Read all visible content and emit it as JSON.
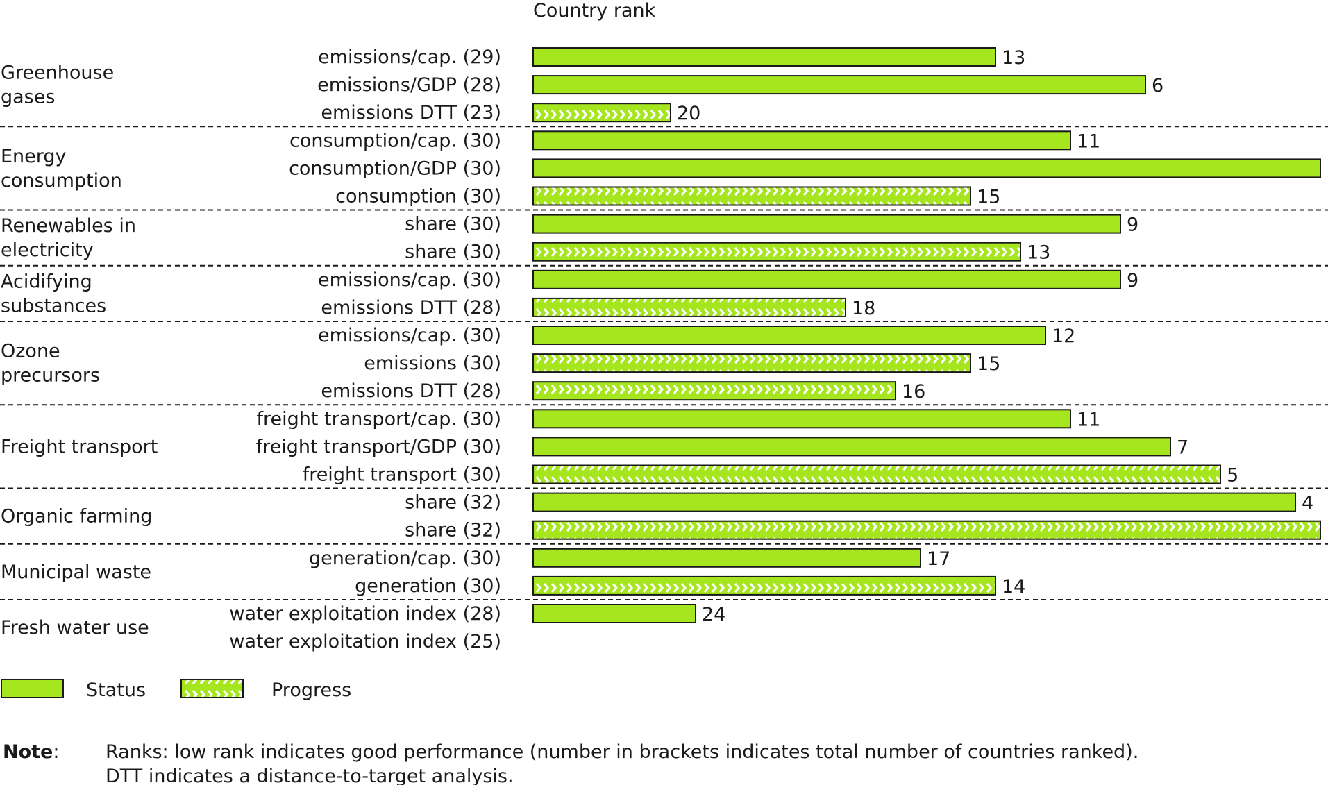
{
  "chart_data": {
    "type": "bar",
    "orientation": "horizontal",
    "title": "Country rank",
    "colors": {
      "status": "#a6e61e",
      "progress": "#a6e61e",
      "progress_chevron": "#ffffff",
      "bar_stroke": "#1a1a1a",
      "separator": "#1a1a1a"
    },
    "groups": [
      {
        "name": "Greenhouse gases",
        "name_lines": [
          "Greenhouse",
          "gases"
        ],
        "rows": [
          {
            "label": "emissions/cap. (29)",
            "type": "status",
            "rank": 13,
            "total": 29
          },
          {
            "label": "emissions/GDP (28)",
            "type": "status",
            "rank": 6,
            "total": 28
          },
          {
            "label": "emissions DTT (23)",
            "type": "progress",
            "rank": 20,
            "total": 23
          }
        ]
      },
      {
        "name": "Energy consumption",
        "name_lines": [
          "Energy",
          "consumption"
        ],
        "rows": [
          {
            "label": "consumption/cap. (30)",
            "type": "status",
            "rank": 11,
            "total": 30
          },
          {
            "label": "consumption/GDP (30)",
            "type": "status",
            "rank": 1,
            "total": 30
          },
          {
            "label": "consumption (30)",
            "type": "progress",
            "rank": 15,
            "total": 30
          }
        ]
      },
      {
        "name": "Renewables in electricity",
        "name_lines": [
          "Renewables in",
          "electricity"
        ],
        "rows": [
          {
            "label": "share (30)",
            "type": "status",
            "rank": 9,
            "total": 30
          },
          {
            "label": "share (30)",
            "type": "progress",
            "rank": 13,
            "total": 30
          }
        ]
      },
      {
        "name": "Acidifying substances",
        "name_lines": [
          "Acidifying",
          "substances"
        ],
        "rows": [
          {
            "label": "emissions/cap. (30)",
            "type": "status",
            "rank": 9,
            "total": 30
          },
          {
            "label": "emissions DTT (28)",
            "type": "progress",
            "rank": 18,
            "total": 28
          }
        ]
      },
      {
        "name": "Ozone precursors",
        "name_lines": [
          "Ozone",
          "precursors"
        ],
        "rows": [
          {
            "label": "emissions/cap. (30)",
            "type": "status",
            "rank": 12,
            "total": 30
          },
          {
            "label": "emissions (30)",
            "type": "progress",
            "rank": 15,
            "total": 30
          },
          {
            "label": "emissions DTT (28)",
            "type": "progress",
            "rank": 16,
            "total": 28
          }
        ]
      },
      {
        "name": "Freight transport",
        "name_lines": [
          "Freight transport"
        ],
        "rows": [
          {
            "label": "freight transport/cap. (30)",
            "type": "status",
            "rank": 11,
            "total": 30
          },
          {
            "label": "freight transport/GDP (30)",
            "type": "status",
            "rank": 7,
            "total": 30
          },
          {
            "label": "freight transport (30)",
            "type": "progress",
            "rank": 5,
            "total": 30
          }
        ]
      },
      {
        "name": "Organic farming",
        "name_lines": [
          "Organic farming"
        ],
        "rows": [
          {
            "label": "share (32)",
            "type": "status",
            "rank": 4,
            "total": 32
          },
          {
            "label": "share (32)",
            "type": "progress",
            "rank": 3,
            "total": 32
          }
        ]
      },
      {
        "name": "Municipal waste",
        "name_lines": [
          "Municipal waste"
        ],
        "rows": [
          {
            "label": "generation/cap. (30)",
            "type": "status",
            "rank": 17,
            "total": 30
          },
          {
            "label": "generation (30)",
            "type": "progress",
            "rank": 14,
            "total": 30
          }
        ]
      },
      {
        "name": "Fresh water use",
        "name_lines": [
          "Fresh water use"
        ],
        "rows": [
          {
            "label": "water exploitation index (28)",
            "type": "status",
            "rank": 24,
            "total": 28
          },
          {
            "label": "water exploitation index (25)",
            "type": "progress",
            "rank": null,
            "total": 25
          }
        ]
      }
    ],
    "legend": {
      "placement": "bottom-left",
      "items": [
        {
          "key": "status",
          "label": "Status"
        },
        {
          "key": "progress",
          "label": "Progress"
        }
      ]
    },
    "note": {
      "label": "Note",
      "colon": ":",
      "lines": [
        "Ranks: low rank indicates good performance (number in brackets indicates total number of countries ranked).",
        "DTT indicates a distance-to-target analysis."
      ]
    }
  }
}
